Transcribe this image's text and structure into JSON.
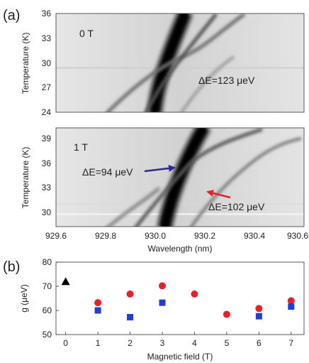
{
  "panel_labels": [
    "(a)",
    "(b)"
  ],
  "chart_data": [
    {
      "type": "heatmap",
      "description_text": [
        "0 T",
        "ΔE=123 μeV"
      ],
      "ylabel": "Temperature (K)",
      "yticks": [
        "24",
        "27",
        "30",
        "33",
        "36"
      ],
      "ylim": [
        24,
        36
      ],
      "xlim": [
        929.6,
        930.6
      ],
      "field_label": "0 T",
      "annotations": [
        {
          "text": "ΔE=123 μeV"
        }
      ]
    },
    {
      "type": "heatmap",
      "ylabel": "Temperature (K)",
      "yticks": [
        "30",
        "33",
        "36",
        "39"
      ],
      "ylim": [
        28,
        40
      ],
      "xlabel": "Wavelength (nm)",
      "xticks": [
        "929.6",
        "929.8",
        "930.0",
        "930.2",
        "930.4",
        "930.6"
      ],
      "xlim": [
        929.6,
        930.6
      ],
      "field_label": "1 T",
      "annotations": [
        {
          "text": "ΔE=94 μeV",
          "arrow_color": "#2b2b8f"
        },
        {
          "text": "ΔE=102 μeV",
          "arrow_color": "#e8202a"
        }
      ]
    },
    {
      "type": "scatter",
      "xlabel": "Magnetic field (T)",
      "ylabel": "g (μeV)",
      "xticks": [
        "0",
        "1",
        "2",
        "3",
        "4",
        "5",
        "6",
        "7"
      ],
      "yticks": [
        "50",
        "60",
        "70",
        "80"
      ],
      "xlim": [
        -0.3,
        7.4
      ],
      "ylim": [
        50,
        80
      ],
      "series": [
        {
          "marker": "triangle",
          "color": "#000000",
          "x": [
            0
          ],
          "y": [
            72
          ]
        },
        {
          "marker": "circle",
          "color": "#e8202a",
          "x": [
            1,
            2,
            3,
            4,
            5,
            6,
            7
          ],
          "y": [
            63.2,
            66.8,
            70.2,
            66.8,
            58.4,
            60.8,
            64.0
          ]
        },
        {
          "marker": "square",
          "color": "#1f3fd6",
          "x": [
            1,
            2,
            3,
            6,
            7
          ],
          "y": [
            60.0,
            57.2,
            63.2,
            57.6,
            61.6
          ]
        }
      ]
    }
  ]
}
